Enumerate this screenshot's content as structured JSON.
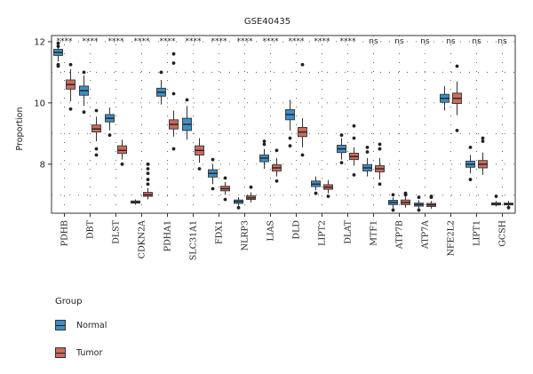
{
  "chart_data": {
    "type": "box",
    "title": "GSE40435",
    "ylabel": "Proportion",
    "xlabel": "",
    "ylim": [
      6.4,
      12.2
    ],
    "yticks": [
      8,
      10,
      12
    ],
    "grid": "dotted",
    "legend_position": "bottom-left",
    "legend_title": "Group",
    "groups": [
      {
        "name": "Normal",
        "color": "#3d8fc6"
      },
      {
        "name": "Tumor",
        "color": "#cd6a5c"
      }
    ],
    "categories": [
      "PDHB",
      "DBT",
      "DLST",
      "CDKN2A",
      "PDHA1",
      "SLC31A1",
      "FDX1",
      "NLRP3",
      "LIAS",
      "DLD",
      "LIPT2",
      "DLAT",
      "MTF1",
      "ATP7B",
      "ATP7A",
      "NFE2L2",
      "LIPT1",
      "GCSH"
    ],
    "significance": [
      "****",
      "****",
      "****",
      "****",
      "****",
      "****",
      "****",
      "****",
      "****",
      "****",
      "****",
      "****",
      "ns",
      "ns",
      "ns",
      "ns",
      "ns",
      "ns"
    ],
    "series": [
      {
        "name": "Normal",
        "stats": [
          {
            "min": 11.35,
            "q1": 11.55,
            "median": 11.65,
            "q3": 11.75,
            "max": 12.0,
            "outliers": [
              11.2,
              11.25,
              11.85,
              11.95
            ]
          },
          {
            "min": 9.9,
            "q1": 10.25,
            "median": 10.4,
            "q3": 10.55,
            "max": 10.9,
            "outliers": [
              9.7,
              11.0
            ]
          },
          {
            "min": 9.1,
            "q1": 9.38,
            "median": 9.5,
            "q3": 9.62,
            "max": 9.85,
            "outliers": [
              8.95
            ]
          },
          {
            "min": 6.68,
            "q1": 6.73,
            "median": 6.76,
            "q3": 6.8,
            "max": 6.85,
            "outliers": []
          },
          {
            "min": 9.95,
            "q1": 10.22,
            "median": 10.35,
            "q3": 10.48,
            "max": 10.75,
            "outliers": [
              11.0
            ]
          },
          {
            "min": 8.8,
            "q1": 9.1,
            "median": 9.3,
            "q3": 9.5,
            "max": 9.9,
            "outliers": [
              10.1
            ]
          },
          {
            "min": 7.35,
            "q1": 7.58,
            "median": 7.7,
            "q3": 7.82,
            "max": 8.0,
            "outliers": [
              8.15,
              7.2
            ]
          },
          {
            "min": 6.65,
            "q1": 6.72,
            "median": 6.78,
            "q3": 6.83,
            "max": 6.92,
            "outliers": [
              6.58
            ]
          },
          {
            "min": 7.85,
            "q1": 8.08,
            "median": 8.2,
            "q3": 8.3,
            "max": 8.5,
            "outliers": [
              8.65,
              8.75
            ]
          },
          {
            "min": 9.1,
            "q1": 9.45,
            "median": 9.62,
            "q3": 9.78,
            "max": 10.1,
            "outliers": [
              8.85,
              8.6
            ]
          },
          {
            "min": 7.15,
            "q1": 7.27,
            "median": 7.35,
            "q3": 7.45,
            "max": 7.6,
            "outliers": [
              7.05
            ]
          },
          {
            "min": 8.15,
            "q1": 8.38,
            "median": 8.5,
            "q3": 8.62,
            "max": 8.85,
            "outliers": [
              8.95,
              8.05
            ]
          },
          {
            "min": 7.6,
            "q1": 7.78,
            "median": 7.88,
            "q3": 7.98,
            "max": 8.2,
            "outliers": [
              8.4,
              8.55
            ]
          },
          {
            "min": 6.55,
            "q1": 6.68,
            "median": 6.75,
            "q3": 6.82,
            "max": 6.92,
            "outliers": [
              6.5,
              7.0
            ]
          },
          {
            "min": 6.55,
            "q1": 6.63,
            "median": 6.68,
            "q3": 6.73,
            "max": 6.82,
            "outliers": [
              6.5,
              6.92
            ]
          },
          {
            "min": 9.75,
            "q1": 10.02,
            "median": 10.15,
            "q3": 10.28,
            "max": 10.55,
            "outliers": []
          },
          {
            "min": 7.7,
            "q1": 7.9,
            "median": 8.0,
            "q3": 8.1,
            "max": 8.3,
            "outliers": [
              8.55,
              7.5
            ]
          },
          {
            "min": 6.62,
            "q1": 6.67,
            "median": 6.7,
            "q3": 6.74,
            "max": 6.8,
            "outliers": [
              6.95
            ]
          }
        ]
      },
      {
        "name": "Tumor",
        "stats": [
          {
            "min": 10.05,
            "q1": 10.45,
            "median": 10.6,
            "q3": 10.75,
            "max": 11.1,
            "outliers": [
              9.8,
              11.25
            ]
          },
          {
            "min": 8.75,
            "q1": 9.05,
            "median": 9.15,
            "q3": 9.28,
            "max": 9.55,
            "outliers": [
              8.5,
              8.3,
              9.75
            ]
          },
          {
            "min": 8.15,
            "q1": 8.35,
            "median": 8.45,
            "q3": 8.6,
            "max": 8.8,
            "outliers": [
              8.0
            ]
          },
          {
            "min": 6.85,
            "q1": 6.95,
            "median": 7.0,
            "q3": 7.08,
            "max": 7.22,
            "outliers": [
              7.35,
              7.5,
              7.7,
              7.85,
              8.0
            ]
          },
          {
            "min": 8.9,
            "q1": 9.15,
            "median": 9.3,
            "q3": 9.45,
            "max": 9.75,
            "outliers": [
              8.5,
              10.3,
              11.3,
              11.6
            ]
          },
          {
            "min": 8.05,
            "q1": 8.3,
            "median": 8.45,
            "q3": 8.6,
            "max": 8.85,
            "outliers": [
              7.85
            ]
          },
          {
            "min": 7.0,
            "q1": 7.13,
            "median": 7.2,
            "q3": 7.28,
            "max": 7.42,
            "outliers": [
              6.85,
              7.55
            ]
          },
          {
            "min": 6.75,
            "q1": 6.85,
            "median": 6.9,
            "q3": 6.97,
            "max": 7.08,
            "outliers": [
              7.25
            ]
          },
          {
            "min": 7.6,
            "q1": 7.78,
            "median": 7.88,
            "q3": 7.98,
            "max": 8.2,
            "outliers": [
              8.45,
              7.45
            ]
          },
          {
            "min": 8.55,
            "q1": 8.9,
            "median": 9.05,
            "q3": 9.2,
            "max": 9.5,
            "outliers": [
              8.3,
              11.25
            ]
          },
          {
            "min": 7.05,
            "q1": 7.18,
            "median": 7.25,
            "q3": 7.33,
            "max": 7.48,
            "outliers": [
              6.95
            ]
          },
          {
            "min": 7.95,
            "q1": 8.15,
            "median": 8.25,
            "q3": 8.36,
            "max": 8.55,
            "outliers": [
              8.85,
              9.25,
              7.65
            ]
          },
          {
            "min": 7.5,
            "q1": 7.75,
            "median": 7.85,
            "q3": 7.95,
            "max": 8.2,
            "outliers": [
              8.5,
              8.65,
              7.35
            ]
          },
          {
            "min": 6.58,
            "q1": 6.68,
            "median": 6.75,
            "q3": 6.83,
            "max": 6.95,
            "outliers": [
              7.05,
              7.0
            ]
          },
          {
            "min": 6.55,
            "q1": 6.62,
            "median": 6.67,
            "q3": 6.72,
            "max": 6.8,
            "outliers": [
              6.92,
              6.95
            ]
          },
          {
            "min": 9.6,
            "q1": 9.98,
            "median": 10.15,
            "q3": 10.32,
            "max": 10.7,
            "outliers": [
              9.1,
              11.2
            ]
          },
          {
            "min": 7.65,
            "q1": 7.88,
            "median": 8.0,
            "q3": 8.12,
            "max": 8.38,
            "outliers": [
              8.75,
              8.85
            ]
          },
          {
            "min": 6.62,
            "q1": 6.67,
            "median": 6.7,
            "q3": 6.73,
            "max": 6.8,
            "outliers": [
              6.58
            ]
          }
        ]
      }
    ]
  }
}
